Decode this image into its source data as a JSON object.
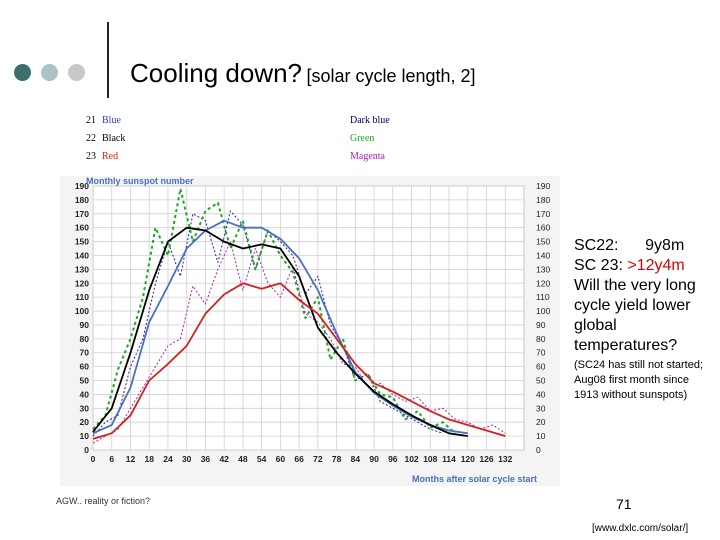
{
  "slide": {
    "title": "Cooling down?",
    "subtitle": "[solar cycle length, 2]",
    "bullet_colors": [
      "#3c6e6e",
      "#a8c4c4",
      "#c8c8c8"
    ]
  },
  "legend": {
    "left": [
      {
        "num": "21",
        "name": "Blue",
        "color": "#2a3ccc"
      },
      {
        "num": "22",
        "name": "Black",
        "color": "#000000"
      },
      {
        "num": "23",
        "name": "Red",
        "color": "#d42020"
      }
    ],
    "right": [
      {
        "name": "Dark blue",
        "color": "#000060"
      },
      {
        "name": "Green",
        "color": "#1fa81f"
      },
      {
        "name": "Magenta",
        "color": "#b020b0"
      }
    ]
  },
  "chart_data": {
    "type": "line",
    "title": "Monthly sunspot number",
    "xlabel": "Months after solar cycle start",
    "ylabel": "",
    "xlim": [
      0,
      138
    ],
    "ylim": [
      0,
      190
    ],
    "xticks": [
      0,
      6,
      12,
      18,
      24,
      30,
      36,
      42,
      48,
      54,
      60,
      66,
      72,
      78,
      84,
      90,
      96,
      102,
      108,
      114,
      120,
      126,
      132
    ],
    "yticks": [
      0,
      10,
      20,
      30,
      40,
      50,
      60,
      70,
      80,
      90,
      100,
      110,
      120,
      130,
      140,
      150,
      160,
      170,
      180,
      190
    ],
    "grid": true,
    "series": [
      {
        "name": "Cycle 21 (smoothed)",
        "color": "#4a6fbf",
        "width": 1.8,
        "dash": "",
        "x": [
          0,
          6,
          12,
          18,
          24,
          30,
          36,
          42,
          48,
          54,
          60,
          66,
          72,
          78,
          84,
          90,
          96,
          102,
          108,
          114,
          120
        ],
        "y": [
          12,
          18,
          45,
          92,
          118,
          145,
          158,
          165,
          160,
          160,
          152,
          138,
          115,
          84,
          56,
          41,
          32,
          24,
          18,
          14,
          12
        ]
      },
      {
        "name": "Cycle 22 (smoothed)",
        "color": "#000000",
        "width": 1.8,
        "dash": "",
        "x": [
          0,
          6,
          12,
          18,
          24,
          30,
          36,
          42,
          48,
          54,
          60,
          66,
          72,
          78,
          84,
          90,
          96,
          102,
          108,
          114,
          120
        ],
        "y": [
          13,
          30,
          70,
          115,
          150,
          160,
          158,
          150,
          145,
          148,
          145,
          125,
          88,
          70,
          55,
          42,
          33,
          25,
          18,
          12,
          10
        ]
      },
      {
        "name": "Cycle 23 (smoothed)",
        "color": "#d42020",
        "width": 1.8,
        "dash": "",
        "x": [
          0,
          6,
          12,
          18,
          24,
          30,
          36,
          42,
          48,
          54,
          60,
          66,
          72,
          78,
          84,
          90,
          96,
          102,
          108,
          114,
          120,
          126,
          132
        ],
        "y": [
          8,
          12,
          25,
          50,
          62,
          75,
          98,
          112,
          120,
          116,
          120,
          108,
          98,
          80,
          62,
          48,
          42,
          35,
          28,
          22,
          18,
          14,
          10
        ]
      },
      {
        "name": "Cycle 21 (monthly)",
        "color": "#20209a",
        "width": 1.0,
        "dash": "2,2",
        "x": [
          0,
          4,
          8,
          12,
          16,
          20,
          24,
          28,
          32,
          36,
          40,
          44,
          48,
          52,
          56,
          60,
          64,
          68,
          72,
          76,
          80,
          84,
          88,
          92,
          96,
          100,
          104,
          108,
          112
        ],
        "y": [
          10,
          20,
          25,
          60,
          80,
          120,
          150,
          125,
          170,
          165,
          135,
          172,
          162,
          130,
          158,
          150,
          140,
          112,
          125,
          90,
          75,
          50,
          55,
          35,
          30,
          25,
          20,
          15,
          12
        ]
      },
      {
        "name": "Cycle 22 (monthly)",
        "color": "#1fa81f",
        "width": 2.0,
        "dash": "3,3",
        "x": [
          0,
          4,
          8,
          12,
          16,
          20,
          24,
          28,
          32,
          36,
          40,
          44,
          48,
          52,
          56,
          60,
          64,
          68,
          72,
          76,
          80,
          84,
          88,
          92,
          96,
          100,
          104,
          108,
          112,
          116
        ],
        "y": [
          15,
          25,
          58,
          80,
          110,
          160,
          140,
          188,
          150,
          172,
          178,
          145,
          165,
          130,
          158,
          140,
          128,
          95,
          110,
          65,
          80,
          50,
          55,
          40,
          38,
          22,
          28,
          16,
          20,
          12
        ]
      },
      {
        "name": "Cycle 23 (monthly)",
        "color": "#b020b0",
        "width": 1.0,
        "dash": "2,2",
        "x": [
          0,
          4,
          8,
          12,
          16,
          20,
          24,
          28,
          32,
          36,
          40,
          44,
          48,
          52,
          56,
          60,
          64,
          68,
          72,
          76,
          80,
          84,
          88,
          92,
          96,
          100,
          104,
          108,
          112,
          116,
          120,
          124,
          128,
          132
        ],
        "y": [
          5,
          10,
          15,
          30,
          45,
          60,
          75,
          80,
          118,
          105,
          130,
          150,
          115,
          145,
          120,
          110,
          132,
          98,
          92,
          80,
          62,
          60,
          45,
          48,
          40,
          35,
          38,
          28,
          30,
          22,
          20,
          15,
          18,
          12
        ]
      }
    ]
  },
  "side_text": {
    "line1": "SC22:      9y8m",
    "line2_prefix": "SC 23: ",
    "line2_value": ">12y4m",
    "line3": "Will the very long cycle yield lower global temperatures?",
    "note": "(SC24 has still not started; Aug08 first month since 1913 without sunspots)"
  },
  "footer": {
    "left": "AGW.. reality or fiction?",
    "page": "71",
    "source": "[www.dxlc.com/solar/]"
  }
}
